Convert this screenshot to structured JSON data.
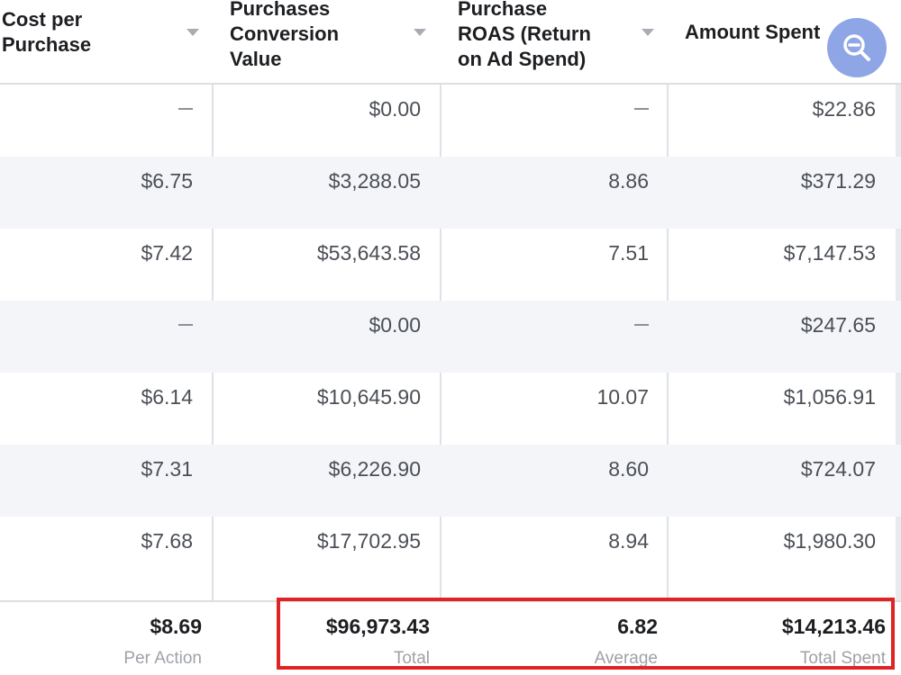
{
  "columns": [
    {
      "label": "Cost per\nPurchase",
      "sortable": true
    },
    {
      "label": "Purchases\nConversion\nValue",
      "sortable": true
    },
    {
      "label": "Purchase\nROAS (Return\non Ad Spend)",
      "sortable": true
    },
    {
      "label": "Amount Spent",
      "sortable": false
    }
  ],
  "rows": [
    {
      "cost_per_purchase": "—",
      "conversion_value": "$0.00",
      "roas": "—",
      "amount_spent": "$22.86"
    },
    {
      "cost_per_purchase": "$6.75",
      "conversion_value": "$3,288.05",
      "roas": "8.86",
      "amount_spent": "$371.29"
    },
    {
      "cost_per_purchase": "$7.42",
      "conversion_value": "$53,643.58",
      "roas": "7.51",
      "amount_spent": "$7,147.53"
    },
    {
      "cost_per_purchase": "—",
      "conversion_value": "$0.00",
      "roas": "—",
      "amount_spent": "$247.65"
    },
    {
      "cost_per_purchase": "$6.14",
      "conversion_value": "$10,645.90",
      "roas": "10.07",
      "amount_spent": "$1,056.91"
    },
    {
      "cost_per_purchase": "$7.31",
      "conversion_value": "$6,226.90",
      "roas": "8.60",
      "amount_spent": "$724.07"
    },
    {
      "cost_per_purchase": "$7.68",
      "conversion_value": "$17,702.95",
      "roas": "8.94",
      "amount_spent": "$1,980.30"
    }
  ],
  "totals": [
    {
      "value": "$8.69",
      "caption": "Per Action"
    },
    {
      "value": "$96,973.43",
      "caption": "Total"
    },
    {
      "value": "6.82",
      "caption": "Average"
    },
    {
      "value": "$14,213.46",
      "caption": "Total Spent"
    }
  ],
  "zoom_button": {
    "icon": "zoom-out-icon",
    "color": "#8fa6e6"
  },
  "highlight_color": "#e02424"
}
